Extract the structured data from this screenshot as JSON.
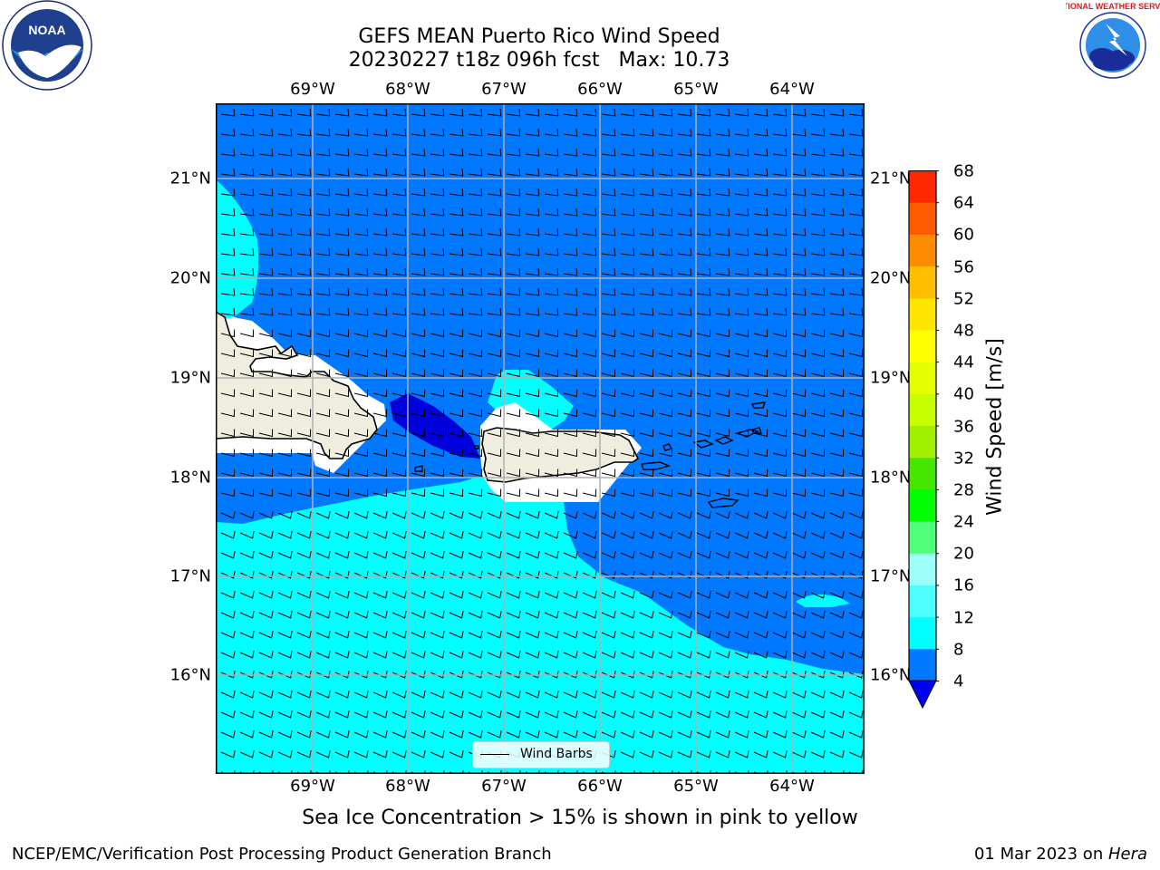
{
  "header": {
    "title_line1": "GEFS MEAN Puerto Rico Wind Speed",
    "title_line2": "20230227 t18z 096h fcst   Max: 10.73"
  },
  "map": {
    "lon_labels": [
      "69°W",
      "68°W",
      "67°W",
      "66°W",
      "65°W",
      "64°W"
    ],
    "lat_labels": [
      "21°N",
      "20°N",
      "19°N",
      "18°N",
      "17°N",
      "16°N"
    ],
    "legend_label": "Wind Barbs",
    "colors": {
      "dark_blue": "#0000dc",
      "mid_blue": "#0078ff",
      "cyan": "#00ffff",
      "land": "#eeedde",
      "gridline": "#b0b0b0"
    }
  },
  "colorbar": {
    "title": "Wind Speed [m/s]",
    "ticks": [
      "68",
      "64",
      "60",
      "56",
      "52",
      "48",
      "44",
      "40",
      "36",
      "32",
      "28",
      "24",
      "20",
      "16",
      "12",
      "8",
      "4"
    ],
    "colors_bottom_to_top": [
      "#0078ff",
      "#00ffff",
      "#4effff",
      "#9dfffa",
      "#52ff78",
      "#00ff00",
      "#46e600",
      "#a0f000",
      "#c8ff00",
      "#e6ff00",
      "#ffff00",
      "#ffe600",
      "#ffbe00",
      "#ff8c00",
      "#ff5a00",
      "#ff2800",
      "#ff0000"
    ],
    "under_color": "#0000f0"
  },
  "note": "Sea Ice Concentration > 15% is shown in pink to yellow",
  "footer": {
    "left": "NCEP/EMC/Verification Post Processing Product Generation Branch",
    "right_prefix": "01 Mar 2023 on ",
    "right_host": "Hera"
  },
  "logos": {
    "left_icon": "noaa-logo-icon",
    "left_text": "NOAA",
    "right_icon": "nws-logo-icon",
    "right_text": "NATIONAL WEATHER SERVICE"
  }
}
